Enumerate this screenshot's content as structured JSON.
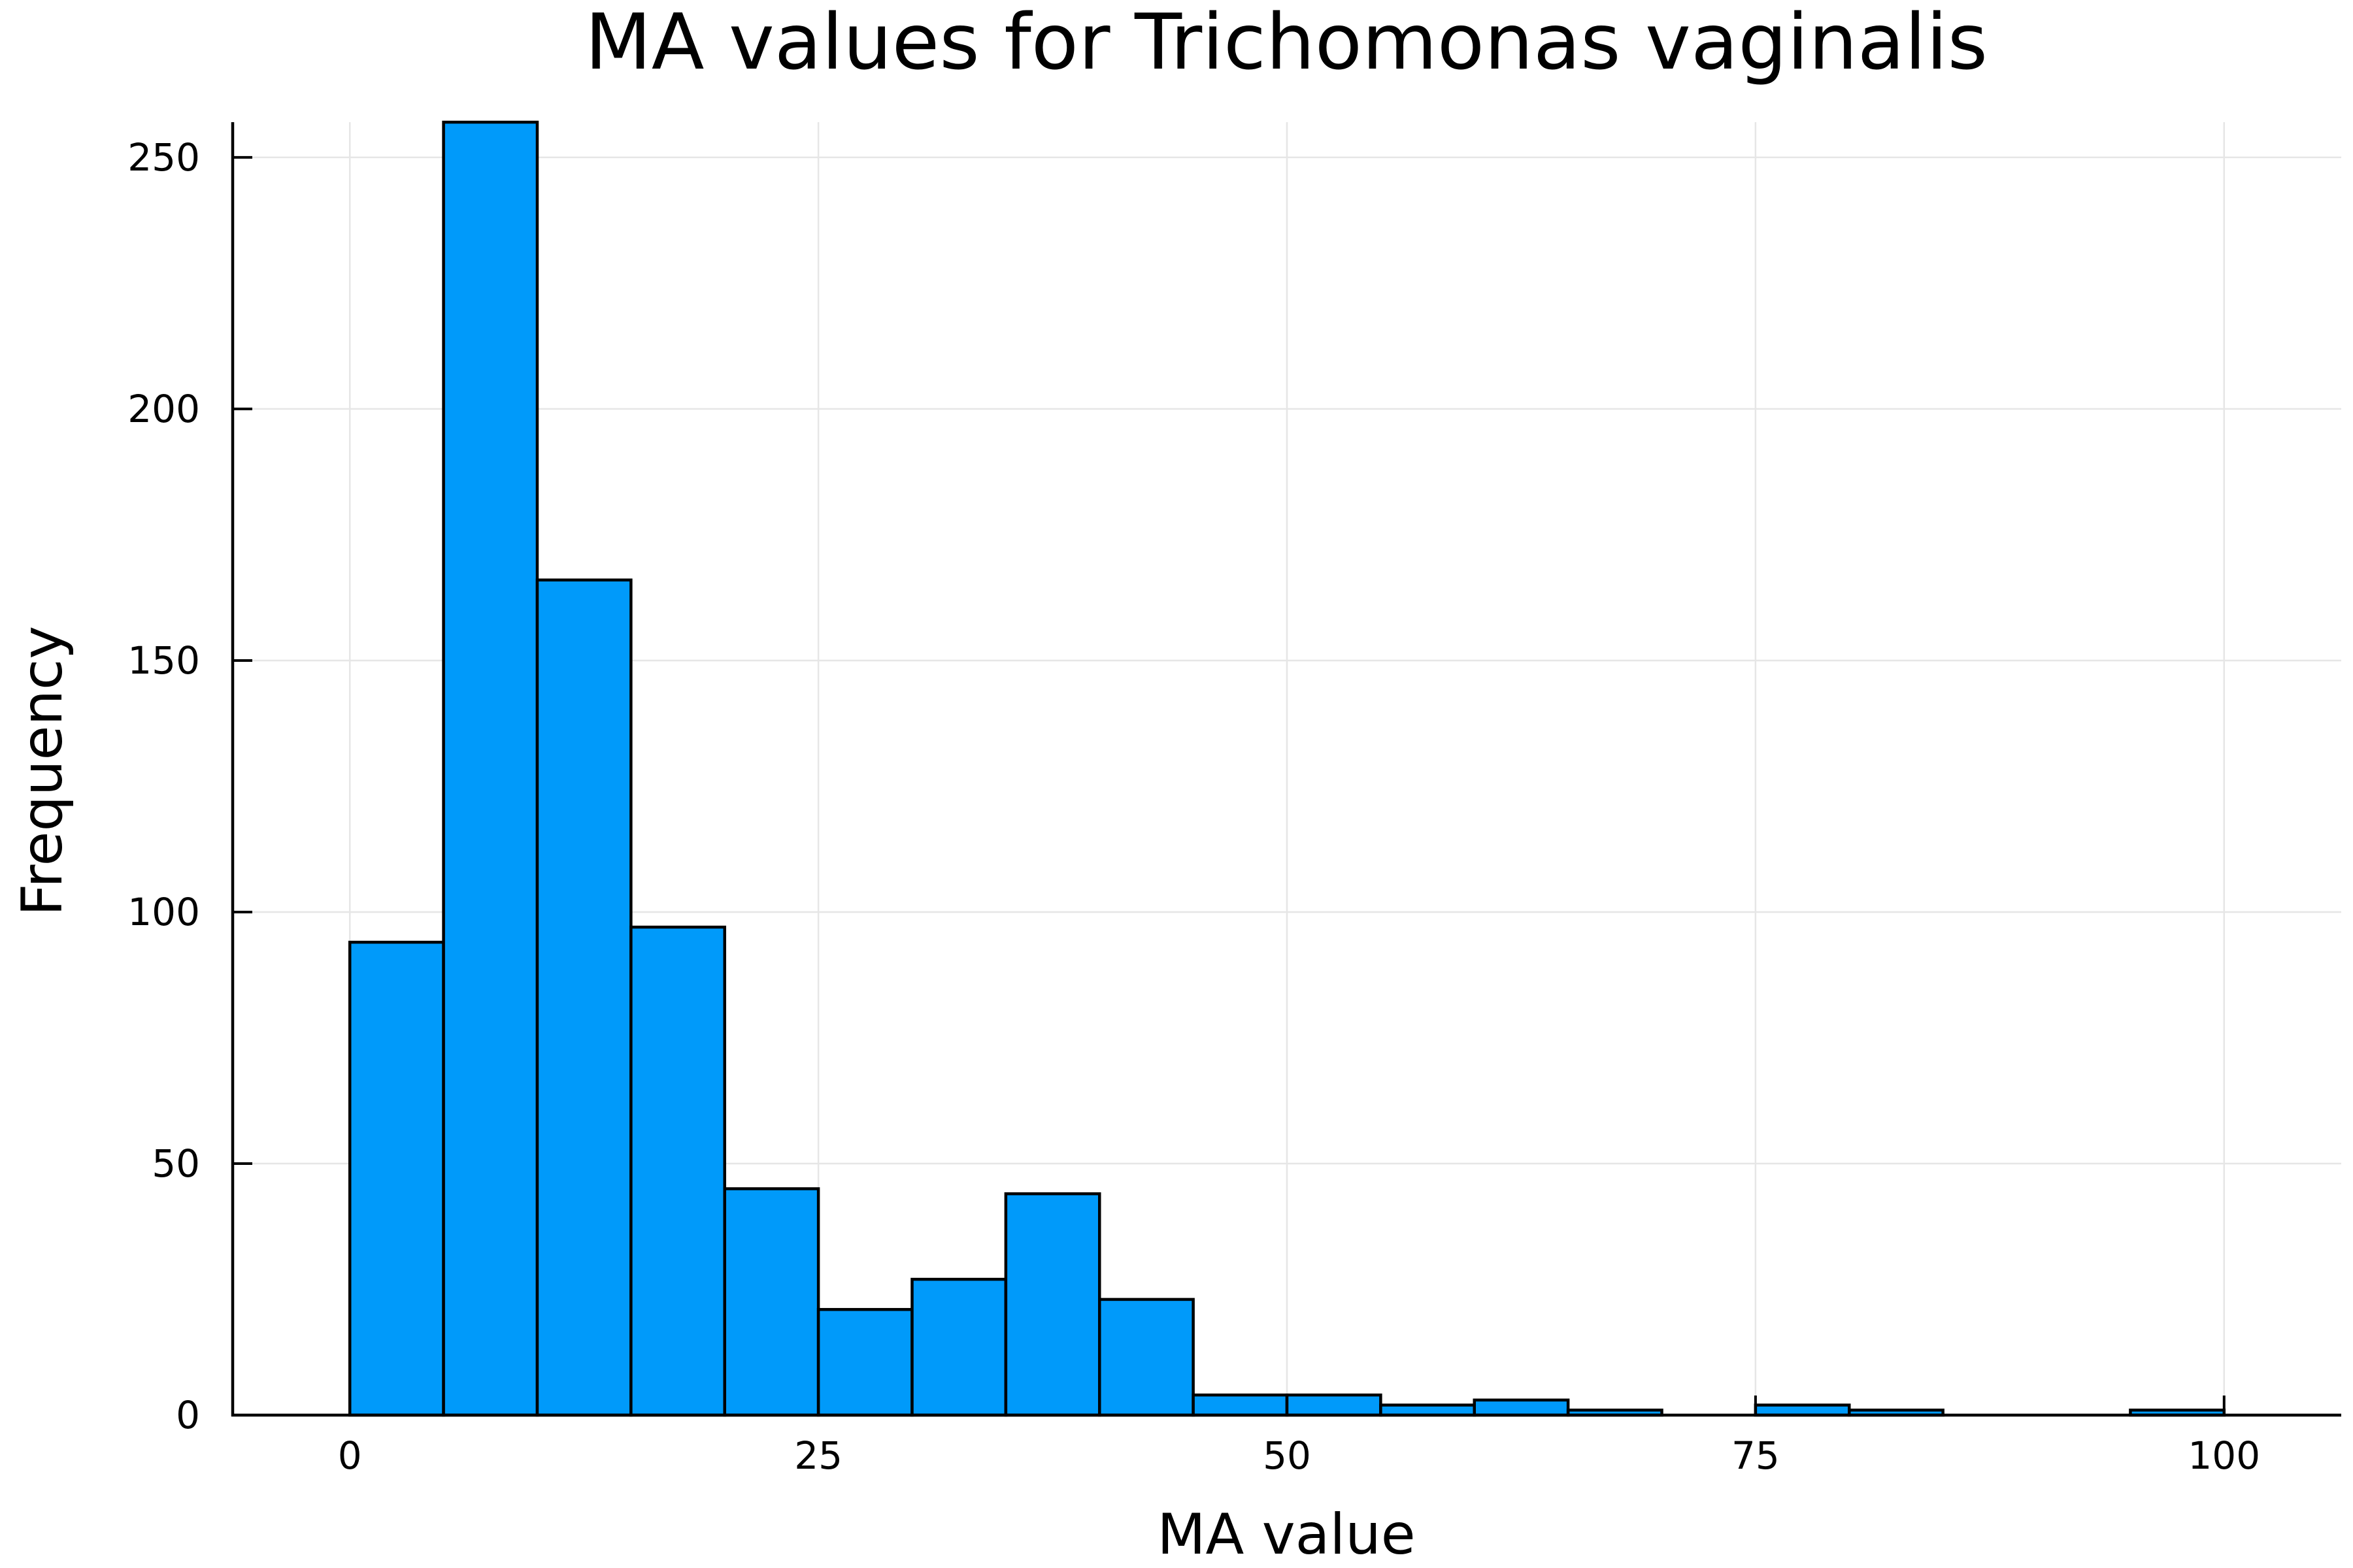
{
  "chart_data": {
    "type": "bar",
    "title": "MA values for Trichomonas vaginalis",
    "xlabel": "MA value",
    "ylabel": "Frequency",
    "xlim": [
      -6.25,
      106.25
    ],
    "ylim": [
      0,
      257
    ],
    "x_ticks": [
      0,
      25,
      50,
      75,
      100
    ],
    "x_tick_labels": [
      "0",
      "25",
      "50",
      "75",
      "100"
    ],
    "y_ticks": [
      0,
      50,
      100,
      150,
      200,
      250
    ],
    "y_tick_labels": [
      "0",
      "50",
      "100",
      "150",
      "200",
      "250"
    ],
    "bin_width": 5,
    "bins": [
      {
        "start": 0,
        "end": 5,
        "value": 94
      },
      {
        "start": 5,
        "end": 10,
        "value": 257
      },
      {
        "start": 10,
        "end": 15,
        "value": 166
      },
      {
        "start": 15,
        "end": 20,
        "value": 97
      },
      {
        "start": 20,
        "end": 25,
        "value": 45
      },
      {
        "start": 25,
        "end": 30,
        "value": 21
      },
      {
        "start": 30,
        "end": 35,
        "value": 27
      },
      {
        "start": 35,
        "end": 40,
        "value": 44
      },
      {
        "start": 40,
        "end": 45,
        "value": 23
      },
      {
        "start": 45,
        "end": 50,
        "value": 4
      },
      {
        "start": 50,
        "end": 55,
        "value": 4
      },
      {
        "start": 55,
        "end": 60,
        "value": 2
      },
      {
        "start": 60,
        "end": 65,
        "value": 3
      },
      {
        "start": 65,
        "end": 70,
        "value": 1
      },
      {
        "start": 70,
        "end": 75,
        "value": 0
      },
      {
        "start": 75,
        "end": 80,
        "value": 2
      },
      {
        "start": 80,
        "end": 85,
        "value": 1
      },
      {
        "start": 85,
        "end": 90,
        "value": 0
      },
      {
        "start": 90,
        "end": 95,
        "value": 0
      },
      {
        "start": 95,
        "end": 100,
        "value": 1
      }
    ],
    "grid": true,
    "legend": "none",
    "colors": {
      "bar_fill": "#009AFA",
      "bar_edge": "#000000",
      "grid": "#E6E6E6",
      "background": "#FFFFFF"
    }
  }
}
